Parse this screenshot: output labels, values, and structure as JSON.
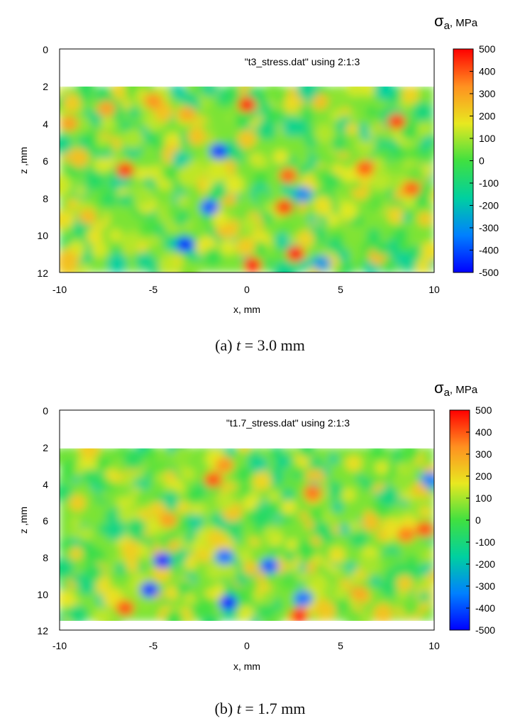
{
  "palette": {
    "colorbar_stops": [
      "#0000ff",
      "#0080ff",
      "#00d0a0",
      "#40e040",
      "#e8e820",
      "#ff9020",
      "#ff0000"
    ]
  },
  "panels": [
    {
      "legend_key": "\"t3_stress.dat\" using 2:1:3",
      "cb_title_sym": "σ",
      "cb_title_sub": "a",
      "cb_title_unit": ", MPa",
      "caption_prefix": "(a) ",
      "caption_var": "t",
      "caption_rest": " = 3.0 mm"
    },
    {
      "legend_key": "\"t1.7_stress.dat\" using 2:1:3",
      "cb_title_sym": "σ",
      "cb_title_sub": "a",
      "cb_title_unit": ", MPa",
      "caption_prefix": "(b) ",
      "caption_var": "t",
      "caption_rest": " = 1.7 mm"
    }
  ],
  "chart_data": [
    {
      "type": "heatmap",
      "title": "",
      "xlabel": "x, mm",
      "ylabel": "z ,mm",
      "xlim": [
        -10,
        10
      ],
      "ylim": [
        12,
        0
      ],
      "y_inverted": true,
      "x_ticks": [
        "-10",
        "-5",
        "0",
        "5",
        "10"
      ],
      "y_ticks": [
        "0",
        "2",
        "4",
        "6",
        "8",
        "10",
        "12"
      ],
      "data_extent": {
        "x": [
          -10,
          10
        ],
        "z": [
          2,
          12
        ]
      },
      "colorbar": {
        "label": "σa, MPa",
        "range": [
          -500,
          500
        ],
        "ticks": [
          "500",
          "400",
          "300",
          "200",
          "100",
          "0",
          "-100",
          "-200",
          "-300",
          "-400",
          "-500"
        ]
      },
      "legend": "\"t3_stress.dat\" using 2:1:3",
      "features": [
        {
          "x": -7.5,
          "z": 3.2,
          "value": 300
        },
        {
          "x": -5,
          "z": 2.8,
          "value": 320
        },
        {
          "x": -3.2,
          "z": 3.5,
          "value": 280
        },
        {
          "x": -9.5,
          "z": 4.0,
          "value": 300
        },
        {
          "x": -6.5,
          "z": 6.5,
          "value": 420
        },
        {
          "x": -1.5,
          "z": 5.5,
          "value": -420
        },
        {
          "x": -2.0,
          "z": 8.5,
          "value": -380
        },
        {
          "x": -3.3,
          "z": 10.5,
          "value": -450
        },
        {
          "x": 0.0,
          "z": 3.0,
          "value": 450
        },
        {
          "x": 0.3,
          "z": 11.6,
          "value": 460
        },
        {
          "x": 2.2,
          "z": 6.8,
          "value": 380
        },
        {
          "x": 2.0,
          "z": 8.5,
          "value": 420
        },
        {
          "x": 2.6,
          "z": 11.0,
          "value": 470
        },
        {
          "x": 3.0,
          "z": 7.8,
          "value": -300
        },
        {
          "x": 6.3,
          "z": 6.4,
          "value": 390
        },
        {
          "x": 8.0,
          "z": 3.9,
          "value": 420
        },
        {
          "x": 8.8,
          "z": 7.5,
          "value": 380
        },
        {
          "x": 4.0,
          "z": 11.5,
          "value": -280
        },
        {
          "x": -8.5,
          "z": 9.0,
          "value": 250
        }
      ]
    },
    {
      "type": "heatmap",
      "title": "",
      "xlabel": "x, mm",
      "ylabel": "z ,mm",
      "xlim": [
        -10,
        10
      ],
      "ylim": [
        12,
        0
      ],
      "y_inverted": true,
      "x_ticks": [
        "-10",
        "-5",
        "0",
        "5",
        "10"
      ],
      "y_ticks": [
        "0",
        "2",
        "4",
        "6",
        "8",
        "10",
        "12"
      ],
      "data_extent": {
        "x": [
          -10,
          10
        ],
        "z": [
          2,
          11.5
        ]
      },
      "colorbar": {
        "label": "σa, MPa",
        "range": [
          -500,
          500
        ],
        "ticks": [
          "500",
          "400",
          "300",
          "200",
          "100",
          "0",
          "-100",
          "-200",
          "-300",
          "-400",
          "-500"
        ]
      },
      "legend": "\"t1.7_stress.dat\" using 2:1:3",
      "features": [
        {
          "x": -1.8,
          "z": 3.8,
          "value": 400
        },
        {
          "x": -1.2,
          "z": 3.0,
          "value": 320
        },
        {
          "x": -4.2,
          "z": 6.0,
          "value": 300
        },
        {
          "x": -4.5,
          "z": 8.2,
          "value": -450
        },
        {
          "x": -5.2,
          "z": 9.8,
          "value": -420
        },
        {
          "x": -1.2,
          "z": 8.0,
          "value": -350
        },
        {
          "x": -1.0,
          "z": 10.5,
          "value": -460
        },
        {
          "x": -6.5,
          "z": 10.8,
          "value": 400
        },
        {
          "x": 1.2,
          "z": 8.5,
          "value": -380
        },
        {
          "x": 2.8,
          "z": 11.2,
          "value": 450
        },
        {
          "x": 3.0,
          "z": 10.3,
          "value": -350
        },
        {
          "x": 3.5,
          "z": 4.5,
          "value": 360
        },
        {
          "x": 8.5,
          "z": 6.8,
          "value": 350
        },
        {
          "x": 9.5,
          "z": 6.5,
          "value": 400
        },
        {
          "x": 6.0,
          "z": 10.0,
          "value": 280
        },
        {
          "x": 9.8,
          "z": 3.8,
          "value": -320
        }
      ]
    }
  ]
}
